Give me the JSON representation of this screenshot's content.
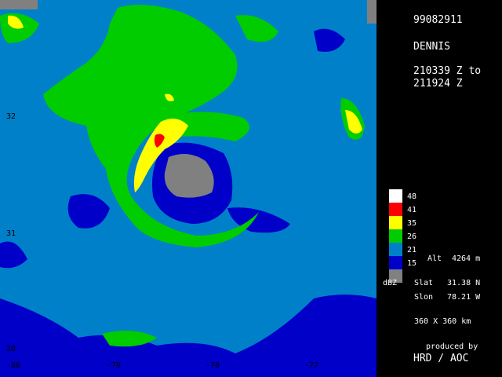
{
  "header": {
    "date": "99082911",
    "storm": "DENNIS",
    "time_line1": "210339 Z to",
    "time_line2": "211924 Z"
  },
  "legend": {
    "unit": "dBZ",
    "items": [
      {
        "value": "48",
        "color": "#ffffff"
      },
      {
        "value": "41",
        "color": "#ff0000"
      },
      {
        "value": "35",
        "color": "#ffff00"
      },
      {
        "value": "26",
        "color": "#00cc00"
      },
      {
        "value": "21",
        "color": "#0080c8"
      },
      {
        "value": "15",
        "color": "#0000c8"
      },
      {
        "value": "",
        "color": "#808080"
      }
    ]
  },
  "info": {
    "alt_label": "Alt",
    "alt_value": "4264 m",
    "slat_label": "Slat",
    "slat_value": "31.38 N",
    "slon_label": "Slon",
    "slon_value": "78.21 W",
    "extent": "360 X 360 km",
    "produced_by": "produced by",
    "org": "HRD / AOC"
  },
  "axes": {
    "lat_ticks": [
      "32",
      "31",
      "30"
    ],
    "lon_ticks": [
      "-80",
      "-79",
      "-78",
      "-77"
    ]
  },
  "colors": {
    "ocean": "#0080c8",
    "weak": "#0000c8",
    "moderate": "#00cc00",
    "strong": "#ffff00",
    "intense": "#ff0000",
    "land": "#808080"
  }
}
